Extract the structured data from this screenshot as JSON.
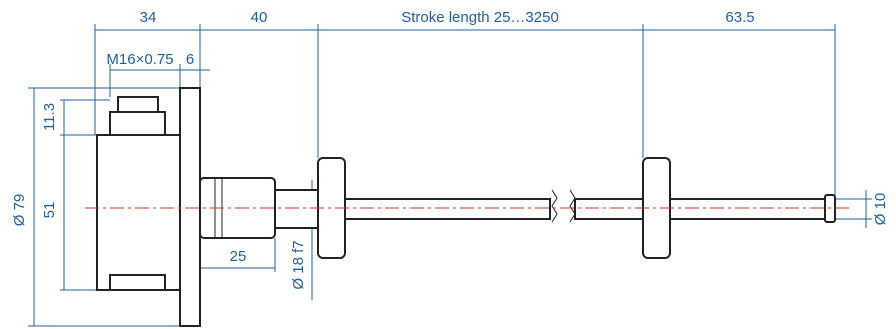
{
  "dimensions": {
    "body_length": "34",
    "neck_length": "40",
    "stroke": "Stroke length 25…3250",
    "end_length": "63.5",
    "thread": "M16×0.75",
    "thread_depth": "6",
    "connector_height": "11.3",
    "flange_diameter": "Ø 79",
    "body_height": "51",
    "neck_thread_length": "25",
    "neck_diameter": "Ø 18 f7",
    "rod_diameter": "Ø 10"
  }
}
